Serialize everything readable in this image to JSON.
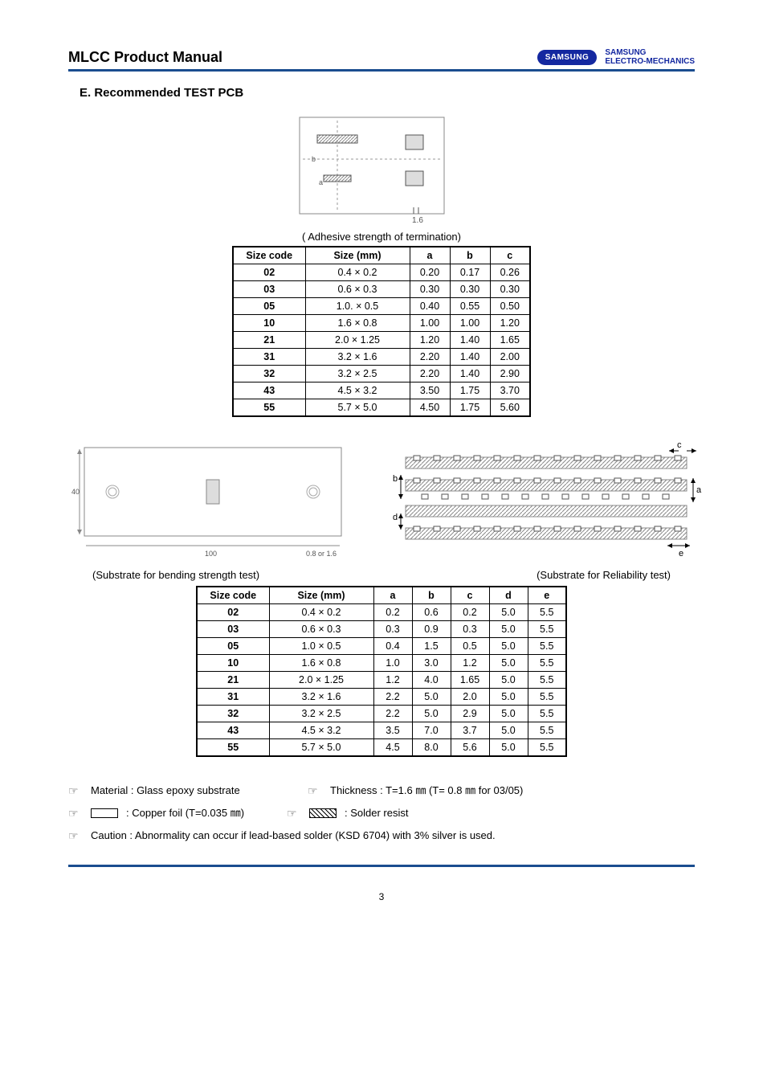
{
  "header": {
    "doc_title": "MLCC Product Manual",
    "logo_oval": "SAMSUNG",
    "logo_text_line1": "SAMSUNG",
    "logo_text_line2": "ELECTRO-MECHANICS"
  },
  "section_heading": "E. Recommended TEST PCB",
  "diagram1": {
    "thickness_label": "1.6"
  },
  "table1": {
    "caption": "( Adhesive strength of termination)",
    "headers": [
      "Size code",
      "Size (mm)",
      "a",
      "b",
      "c"
    ],
    "rows": [
      [
        "02",
        "0.4 × 0.2",
        "0.20",
        "0.17",
        "0.26"
      ],
      [
        "03",
        "0.6 × 0.3",
        "0.30",
        "0.30",
        "0.30"
      ],
      [
        "05",
        "1.0. × 0.5",
        "0.40",
        "0.55",
        "0.50"
      ],
      [
        "10",
        "1.6 × 0.8",
        "1.00",
        "1.00",
        "1.20"
      ],
      [
        "21",
        "2.0 × 1.25",
        "1.20",
        "1.40",
        "1.65"
      ],
      [
        "31",
        "3.2 × 1.6",
        "2.20",
        "1.40",
        "2.00"
      ],
      [
        "32",
        "3.2 × 2.5",
        "2.20",
        "1.40",
        "2.90"
      ],
      [
        "43",
        "4.5 × 3.2",
        "3.50",
        "1.75",
        "3.70"
      ],
      [
        "55",
        "5.7 × 5.0",
        "4.50",
        "1.75",
        "5.60"
      ]
    ],
    "col_widths": [
      "90px",
      "130px",
      "50px",
      "50px",
      "50px"
    ]
  },
  "diagram2": {
    "left_dim": "40",
    "bottom_dim": "100",
    "thickness": "0.8 or 1.6",
    "labels": {
      "a": "a",
      "b": "b",
      "c": "c",
      "d": "d",
      "e": "e"
    }
  },
  "caption_left": "(Substrate for bending strength test)",
  "caption_right": "(Substrate for Reliability test)",
  "table2": {
    "headers": [
      "Size code",
      "Size (mm)",
      "a",
      "b",
      "c",
      "d",
      "e"
    ],
    "rows": [
      [
        "02",
        "0.4 × 0.2",
        "0.2",
        "0.6",
        "0.2",
        "5.0",
        "5.5"
      ],
      [
        "03",
        "0.6 × 0.3",
        "0.3",
        "0.9",
        "0.3",
        "5.0",
        "5.5"
      ],
      [
        "05",
        "1.0 × 0.5",
        "0.4",
        "1.5",
        "0.5",
        "5.0",
        "5.5"
      ],
      [
        "10",
        "1.6 × 0.8",
        "1.0",
        "3.0",
        "1.2",
        "5.0",
        "5.5"
      ],
      [
        "21",
        "2.0 × 1.25",
        "1.2",
        "4.0",
        "1.65",
        "5.0",
        "5.5"
      ],
      [
        "31",
        "3.2 × 1.6",
        "2.2",
        "5.0",
        "2.0",
        "5.0",
        "5.5"
      ],
      [
        "32",
        "3.2 × 2.5",
        "2.2",
        "5.0",
        "2.9",
        "5.0",
        "5.5"
      ],
      [
        "43",
        "4.5 × 3.2",
        "3.5",
        "7.0",
        "3.7",
        "5.0",
        "5.5"
      ],
      [
        "55",
        "5.7 × 5.0",
        "4.5",
        "8.0",
        "5.6",
        "5.0",
        "5.5"
      ]
    ],
    "col_widths": [
      "90px",
      "130px",
      "48px",
      "48px",
      "48px",
      "48px",
      "48px"
    ]
  },
  "notes": {
    "material": "Material : Glass epoxy substrate",
    "thickness": "Thickness : T=1.6 ㎜ (T= 0.8 ㎜ for 03/05)",
    "copper": ": Copper foil (T=0.035 ㎜)",
    "solder": ": Solder resist",
    "caution": "Caution : Abnormality can occur if lead-based solder (KSD 6704) with 3% silver is used."
  },
  "page_number": "3",
  "colors": {
    "rule": "#1a4d8f",
    "samsung_bg": "#1428a0"
  }
}
